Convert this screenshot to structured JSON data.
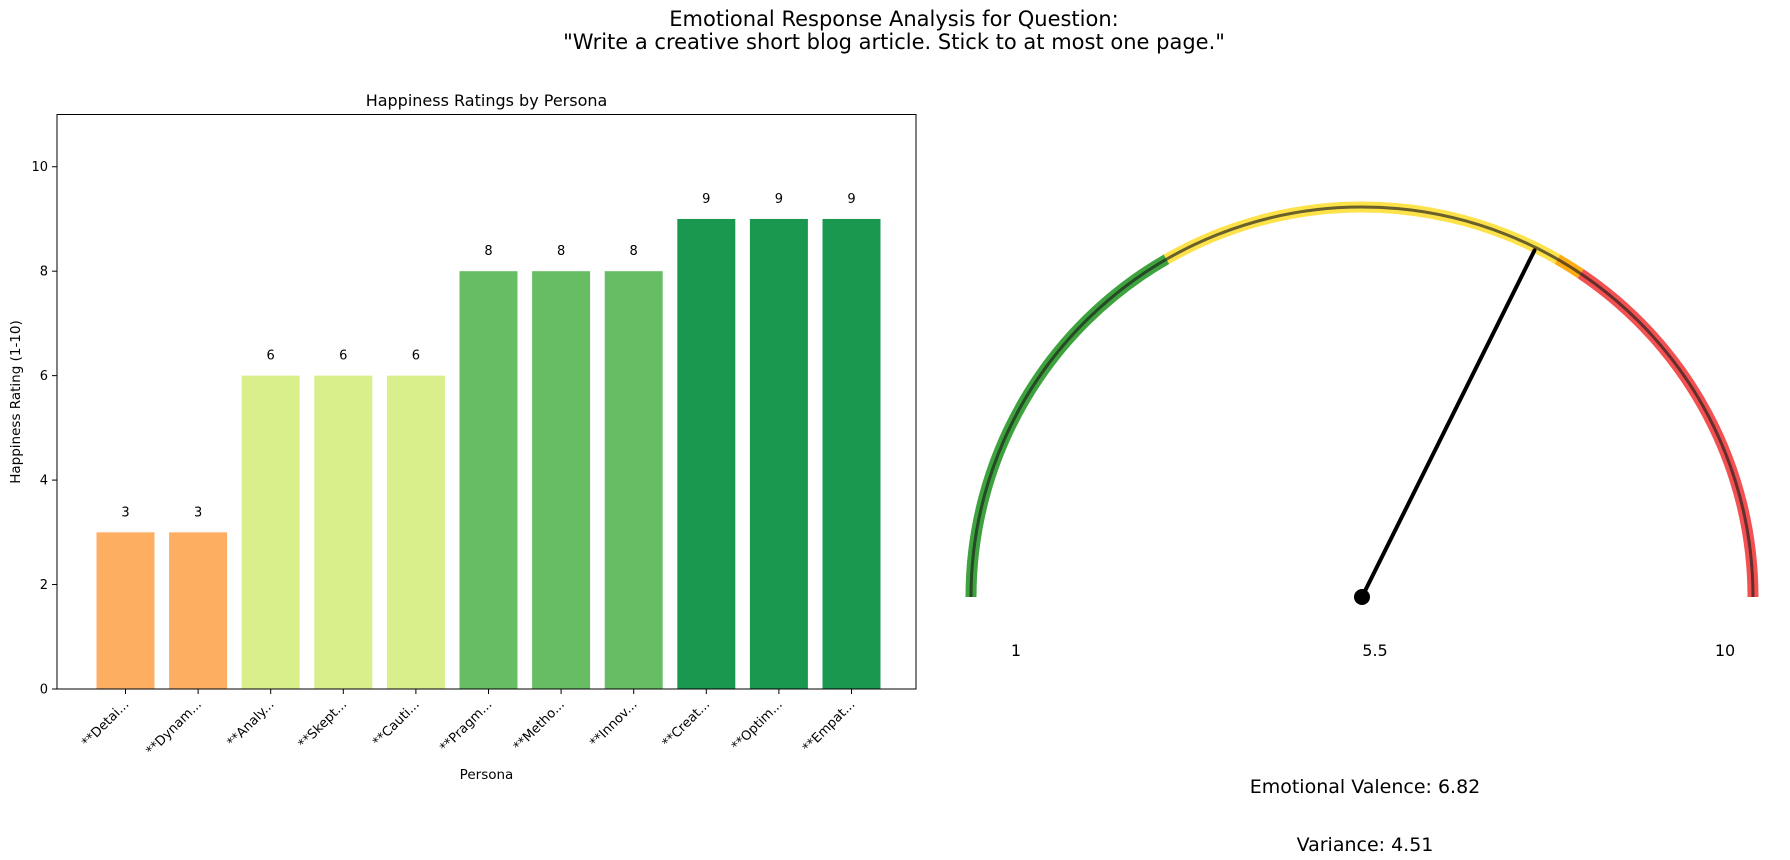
{
  "figure": {
    "title_line1": "Emotional Response Analysis for Question:",
    "title_line2": "\"Write a creative short blog article. Stick to at most one page.\""
  },
  "chart_data": [
    {
      "type": "bar",
      "title": "Happiness Ratings by Persona",
      "xlabel": "Persona",
      "ylabel": "Happiness Rating (1-10)",
      "ylim": [
        0,
        11
      ],
      "yticks": [
        0,
        2,
        4,
        6,
        8,
        10
      ],
      "categories": [
        "**Detai...",
        "**Dynam...",
        "**Analy...",
        "**Skept...",
        "**Cauti...",
        "**Pragm...",
        "**Metho...",
        "**Innov...",
        "**Creat...",
        "**Optim...",
        "**Empat..."
      ],
      "values": [
        3,
        3,
        6,
        6,
        6,
        8,
        8,
        8,
        9,
        9,
        9
      ],
      "colors": [
        "#fdae61",
        "#fdae61",
        "#d9ef8b",
        "#d9ef8b",
        "#d9ef8b",
        "#66bd63",
        "#66bd63",
        "#66bd63",
        "#1a9850",
        "#1a9850",
        "#1a9850"
      ],
      "grid": false,
      "legend": "none"
    },
    {
      "type": "gauge",
      "min": 1,
      "max": 10,
      "tick_labels": [
        "1",
        "5.5",
        "10"
      ],
      "value": 6.82,
      "zones": [
        {
          "from": 1,
          "to": 4,
          "color": "#2e9a2e"
        },
        {
          "from": 4,
          "to": 7,
          "color": "#fde03a"
        },
        {
          "from": 7,
          "to": 7.2,
          "color": "#ffa500"
        },
        {
          "from": 7.2,
          "to": 10,
          "color": "#f24242"
        }
      ],
      "valence_text": "Emotional Valence: 6.82",
      "variance_text": "Variance: 4.51"
    }
  ]
}
